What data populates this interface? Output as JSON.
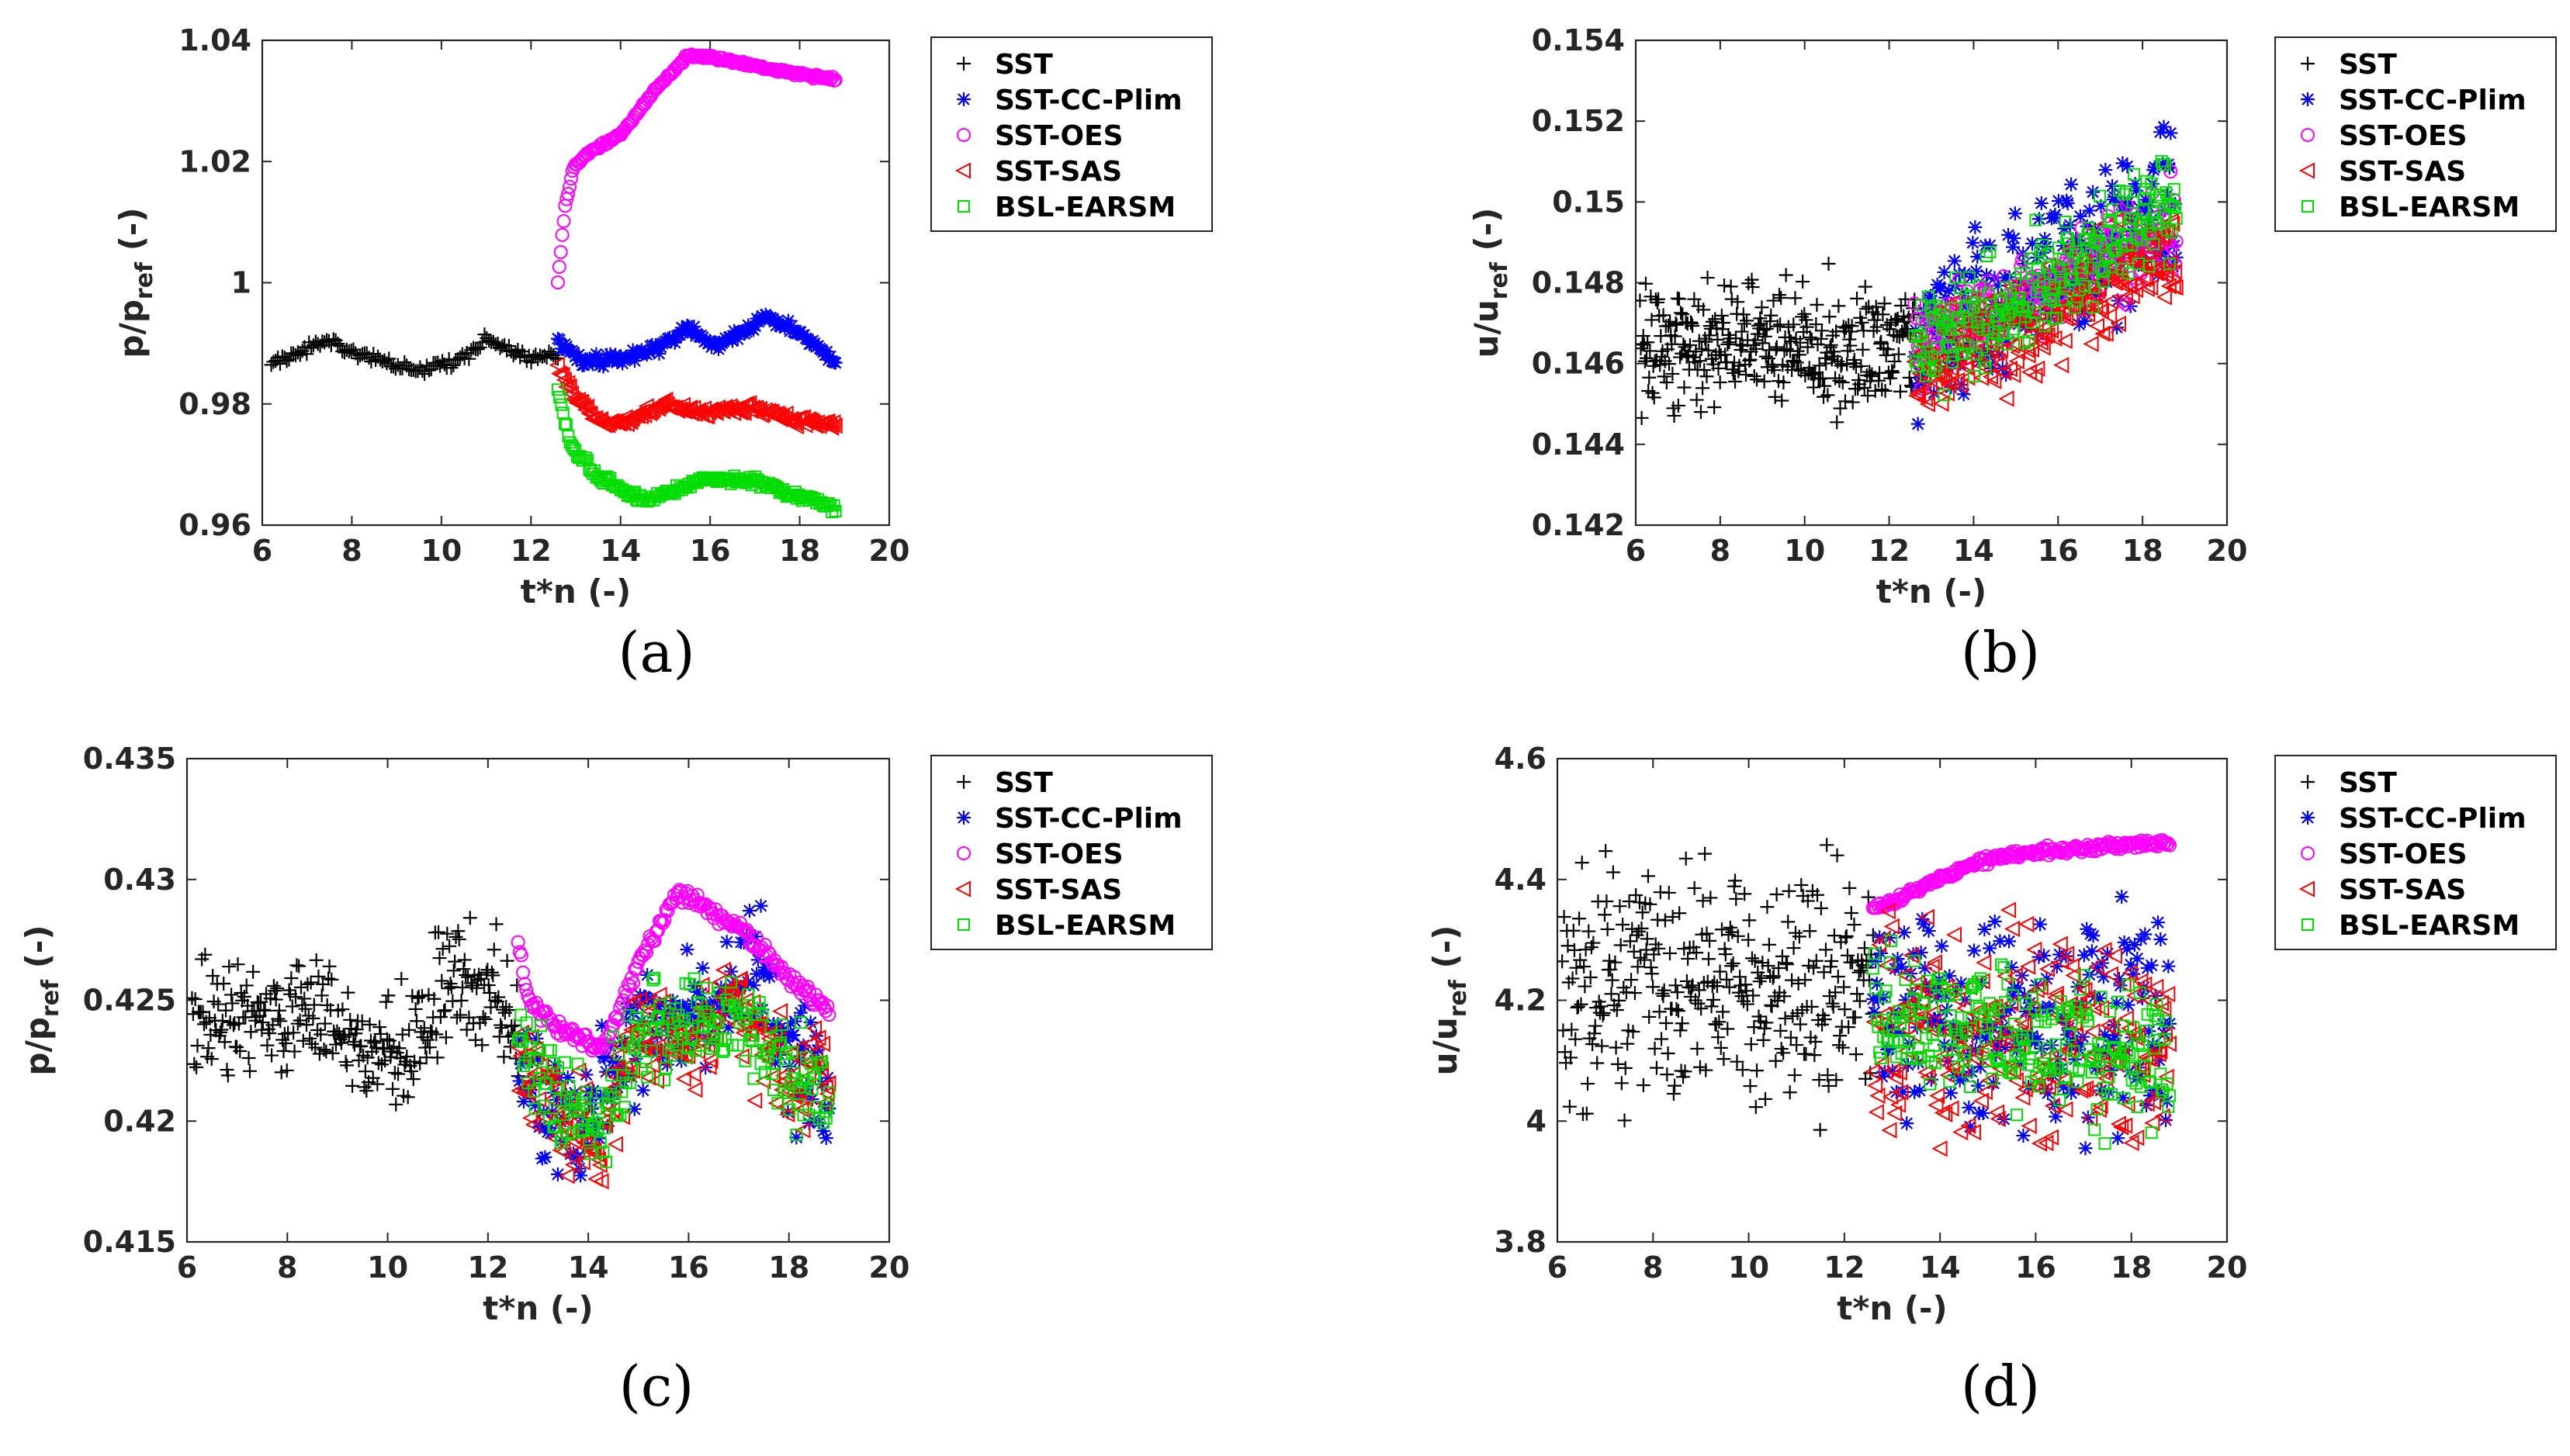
{
  "colors": {
    "SST": "#000000",
    "SST-CC-Plim": "#0000ff",
    "SST-OES": "#ff00ff",
    "SST-SAS": "#ff0000",
    "BSL-EARSM": "#00dd00"
  },
  "legend": {
    "entries": [
      {
        "name": "SST",
        "marker": "plus"
      },
      {
        "name": "SST-CC-Plim",
        "marker": "star"
      },
      {
        "name": "SST-OES",
        "marker": "circle"
      },
      {
        "name": "SST-SAS",
        "marker": "triangle-left"
      },
      {
        "name": "BSL-EARSM",
        "marker": "square"
      }
    ]
  },
  "chart_data": [
    {
      "id": "a",
      "caption": "(a)",
      "type": "scatter",
      "xlabel": "t*n (-)",
      "ylabel_main": "p/p",
      "ylabel_sub": "ref",
      "ylabel_tail": " (-)",
      "xlim": [
        6,
        20
      ],
      "ylim": [
        0.96,
        1.04
      ],
      "xticks": [
        6,
        8,
        10,
        12,
        14,
        16,
        18,
        20
      ],
      "yticks": [
        "0.96",
        "0.98",
        "1",
        "1.02",
        "1.04"
      ],
      "series": [
        {
          "name": "SST",
          "t_range": [
            6.2,
            12.6
          ],
          "count": 130,
          "keys": [
            [
              6.2,
              0.9865
            ],
            [
              7.5,
              0.9905
            ],
            [
              8.5,
              0.9875
            ],
            [
              9.5,
              0.9855
            ],
            [
              10.3,
              0.9868
            ],
            [
              11.0,
              0.9905
            ],
            [
              12.0,
              0.9875
            ],
            [
              12.6,
              0.988
            ]
          ],
          "noise": 0.0008,
          "seed": 1
        },
        {
          "name": "SST-CC-Plim",
          "t_range": [
            12.6,
            18.8
          ],
          "count": 160,
          "keys": [
            [
              12.6,
              0.9905
            ],
            [
              13.2,
              0.987
            ],
            [
              14.0,
              0.9875
            ],
            [
              14.8,
              0.989
            ],
            [
              15.5,
              0.9925
            ],
            [
              16.2,
              0.9895
            ],
            [
              17.3,
              0.9945
            ],
            [
              18.0,
              0.9915
            ],
            [
              18.8,
              0.987
            ]
          ],
          "noise": 0.0009,
          "seed": 2
        },
        {
          "name": "SST-OES",
          "t_range": [
            12.6,
            18.8
          ],
          "count": 190,
          "keys": [
            [
              12.6,
              1.0
            ],
            [
              12.75,
              1.012
            ],
            [
              12.95,
              1.019
            ],
            [
              13.3,
              1.0215
            ],
            [
              14.0,
              1.0245
            ],
            [
              14.8,
              1.032
            ],
            [
              15.5,
              1.0375
            ],
            [
              16.2,
              1.037
            ],
            [
              17.5,
              1.035
            ],
            [
              18.8,
              1.0335
            ]
          ],
          "noise": 0.0003,
          "seed": 3
        },
        {
          "name": "SST-SAS",
          "t_range": [
            12.6,
            18.8
          ],
          "count": 160,
          "keys": [
            [
              12.6,
              0.986
            ],
            [
              13.0,
              0.981
            ],
            [
              13.5,
              0.977
            ],
            [
              14.3,
              0.9775
            ],
            [
              15.0,
              0.98
            ],
            [
              15.8,
              0.9785
            ],
            [
              17.0,
              0.9795
            ],
            [
              17.8,
              0.9775
            ],
            [
              18.8,
              0.9765
            ]
          ],
          "noise": 0.0008,
          "seed": 4
        },
        {
          "name": "BSL-EARSM",
          "t_range": [
            12.6,
            18.8
          ],
          "count": 160,
          "keys": [
            [
              12.6,
              0.982
            ],
            [
              12.9,
              0.973
            ],
            [
              13.5,
              0.968
            ],
            [
              14.5,
              0.964
            ],
            [
              15.0,
              0.965
            ],
            [
              15.8,
              0.9675
            ],
            [
              17.0,
              0.9675
            ],
            [
              17.8,
              0.965
            ],
            [
              18.8,
              0.963
            ]
          ],
          "noise": 0.0007,
          "seed": 5
        }
      ]
    },
    {
      "id": "b",
      "caption": "(b)",
      "type": "scatter",
      "xlabel": "t*n (-)",
      "ylabel_main": "u/u",
      "ylabel_sub": "ref",
      "ylabel_tail": " (-)",
      "xlim": [
        6,
        20
      ],
      "ylim": [
        0.142,
        0.154
      ],
      "xticks": [
        6,
        8,
        10,
        12,
        14,
        16,
        18,
        20
      ],
      "yticks": [
        "0.142",
        "0.144",
        "0.146",
        "0.148",
        "0.15",
        "0.152",
        "0.154"
      ],
      "series": [
        {
          "name": "SST",
          "t_range": [
            6.1,
            12.6
          ],
          "count": 330,
          "keys": [
            [
              6.1,
              0.1465
            ],
            [
              12.6,
              0.1465
            ]
          ],
          "noise": 0.0014,
          "seed": 11
        },
        {
          "name": "SST-CC-Plim",
          "t_range": [
            12.6,
            18.8
          ],
          "count": 230,
          "keys": [
            [
              12.6,
              0.1465
            ],
            [
              15.5,
              0.148
            ],
            [
              18.8,
              0.15
            ]
          ],
          "noise": 0.0017,
          "seed": 12
        },
        {
          "name": "SST-OES",
          "t_range": [
            12.6,
            18.8
          ],
          "count": 230,
          "keys": [
            [
              12.6,
              0.1465
            ],
            [
              15.5,
              0.1478
            ],
            [
              18.8,
              0.1495
            ]
          ],
          "noise": 0.001,
          "seed": 13
        },
        {
          "name": "SST-SAS",
          "t_range": [
            12.6,
            18.8
          ],
          "count": 230,
          "keys": [
            [
              12.6,
              0.146
            ],
            [
              15.5,
              0.147
            ],
            [
              18.8,
              0.1488
            ]
          ],
          "noise": 0.0012,
          "seed": 14
        },
        {
          "name": "BSL-EARSM",
          "t_range": [
            12.6,
            18.8
          ],
          "count": 230,
          "keys": [
            [
              12.6,
              0.1465
            ],
            [
              15.5,
              0.1478
            ],
            [
              18.8,
              0.15
            ]
          ],
          "noise": 0.0012,
          "seed": 15
        }
      ]
    },
    {
      "id": "c",
      "caption": "(c)",
      "type": "scatter",
      "xlabel": "t*n (-)",
      "ylabel_main": "p/p",
      "ylabel_sub": "ref",
      "ylabel_tail": " (-)",
      "xlim": [
        6,
        20
      ],
      "ylim": [
        0.415,
        0.435
      ],
      "xticks": [
        6,
        8,
        10,
        12,
        14,
        16,
        18,
        20
      ],
      "yticks": [
        "0.415",
        "0.42",
        "0.425",
        "0.43",
        "0.435"
      ],
      "series": [
        {
          "name": "SST",
          "t_range": [
            6.1,
            12.6
          ],
          "count": 300,
          "keys": [
            [
              6.1,
              0.4245
            ],
            [
              7.5,
              0.424
            ],
            [
              8.5,
              0.425
            ],
            [
              9.5,
              0.4225
            ],
            [
              10.5,
              0.423
            ],
            [
              11.3,
              0.426
            ],
            [
              12.0,
              0.4255
            ],
            [
              12.6,
              0.424
            ]
          ],
          "noise": 0.0022,
          "seed": 21
        },
        {
          "name": "SST-CC-Plim",
          "t_range": [
            12.6,
            18.8
          ],
          "count": 220,
          "keys": [
            [
              12.6,
              0.4225
            ],
            [
              13.3,
              0.42
            ],
            [
              14.0,
              0.4205
            ],
            [
              15.0,
              0.424
            ],
            [
              16.0,
              0.4245
            ],
            [
              17.0,
              0.425
            ],
            [
              17.5,
              0.427
            ],
            [
              18.0,
              0.4225
            ],
            [
              18.8,
              0.4215
            ]
          ],
          "noise": 0.0022,
          "seed": 22
        },
        {
          "name": "SST-OES",
          "t_range": [
            12.6,
            18.8
          ],
          "count": 190,
          "keys": [
            [
              12.6,
              0.4275
            ],
            [
              12.8,
              0.425
            ],
            [
              13.3,
              0.424
            ],
            [
              14.3,
              0.423
            ],
            [
              15.0,
              0.4265
            ],
            [
              15.8,
              0.4295
            ],
            [
              17.0,
              0.428
            ],
            [
              18.0,
              0.426
            ],
            [
              18.8,
              0.4245
            ]
          ],
          "noise": 0.0003,
          "seed": 23
        },
        {
          "name": "SST-SAS",
          "t_range": [
            12.6,
            18.8
          ],
          "count": 220,
          "keys": [
            [
              12.6,
              0.423
            ],
            [
              13.5,
              0.4195
            ],
            [
              14.2,
              0.4195
            ],
            [
              15.0,
              0.4235
            ],
            [
              16.0,
              0.423
            ],
            [
              17.0,
              0.4245
            ],
            [
              18.0,
              0.4215
            ],
            [
              18.8,
              0.422
            ]
          ],
          "noise": 0.002,
          "seed": 24
        },
        {
          "name": "BSL-EARSM",
          "t_range": [
            12.6,
            18.8
          ],
          "count": 220,
          "keys": [
            [
              12.6,
              0.4235
            ],
            [
              13.5,
              0.4205
            ],
            [
              14.2,
              0.4195
            ],
            [
              15.0,
              0.4235
            ],
            [
              16.0,
              0.424
            ],
            [
              17.0,
              0.4245
            ],
            [
              18.0,
              0.422
            ],
            [
              18.8,
              0.4205
            ]
          ],
          "noise": 0.0018,
          "seed": 25
        }
      ]
    },
    {
      "id": "d",
      "caption": "(d)",
      "type": "scatter",
      "xlabel": "t*n (-)",
      "ylabel_main": "u/u",
      "ylabel_sub": "ref",
      "ylabel_tail": " (-)",
      "xlim": [
        6,
        20
      ],
      "ylim": [
        3.8,
        4.6
      ],
      "xticks": [
        6,
        8,
        10,
        12,
        14,
        16,
        18,
        20
      ],
      "yticks": [
        "3.8",
        "4",
        "4.2",
        "4.4",
        "4.6"
      ],
      "series": [
        {
          "name": "SST",
          "t_range": [
            6.1,
            12.6
          ],
          "count": 330,
          "keys": [
            [
              6.1,
              4.22
            ],
            [
              12.6,
              4.22
            ]
          ],
          "noise": 0.17,
          "seed": 31
        },
        {
          "name": "SST-CC-Plim",
          "t_range": [
            12.6,
            18.8
          ],
          "count": 230,
          "keys": [
            [
              12.6,
              4.18
            ],
            [
              18.8,
              4.18
            ]
          ],
          "noise": 0.16,
          "seed": 32
        },
        {
          "name": "SST-OES",
          "t_range": [
            12.6,
            18.8
          ],
          "count": 200,
          "keys": [
            [
              12.6,
              4.35
            ],
            [
              13.2,
              4.37
            ],
            [
              14.0,
              4.4
            ],
            [
              14.8,
              4.43
            ],
            [
              15.5,
              4.44
            ],
            [
              16.5,
              4.45
            ],
            [
              18.8,
              4.46
            ]
          ],
          "noise": 0.006,
          "seed": 33
        },
        {
          "name": "SST-SAS",
          "t_range": [
            12.6,
            18.8
          ],
          "count": 230,
          "keys": [
            [
              12.6,
              4.15
            ],
            [
              18.8,
              4.12
            ]
          ],
          "noise": 0.15,
          "seed": 34
        },
        {
          "name": "BSL-EARSM",
          "t_range": [
            12.6,
            18.8
          ],
          "count": 230,
          "keys": [
            [
              12.6,
              4.18
            ],
            [
              18.8,
              4.1
            ]
          ],
          "noise": 0.1,
          "seed": 35
        }
      ]
    }
  ]
}
